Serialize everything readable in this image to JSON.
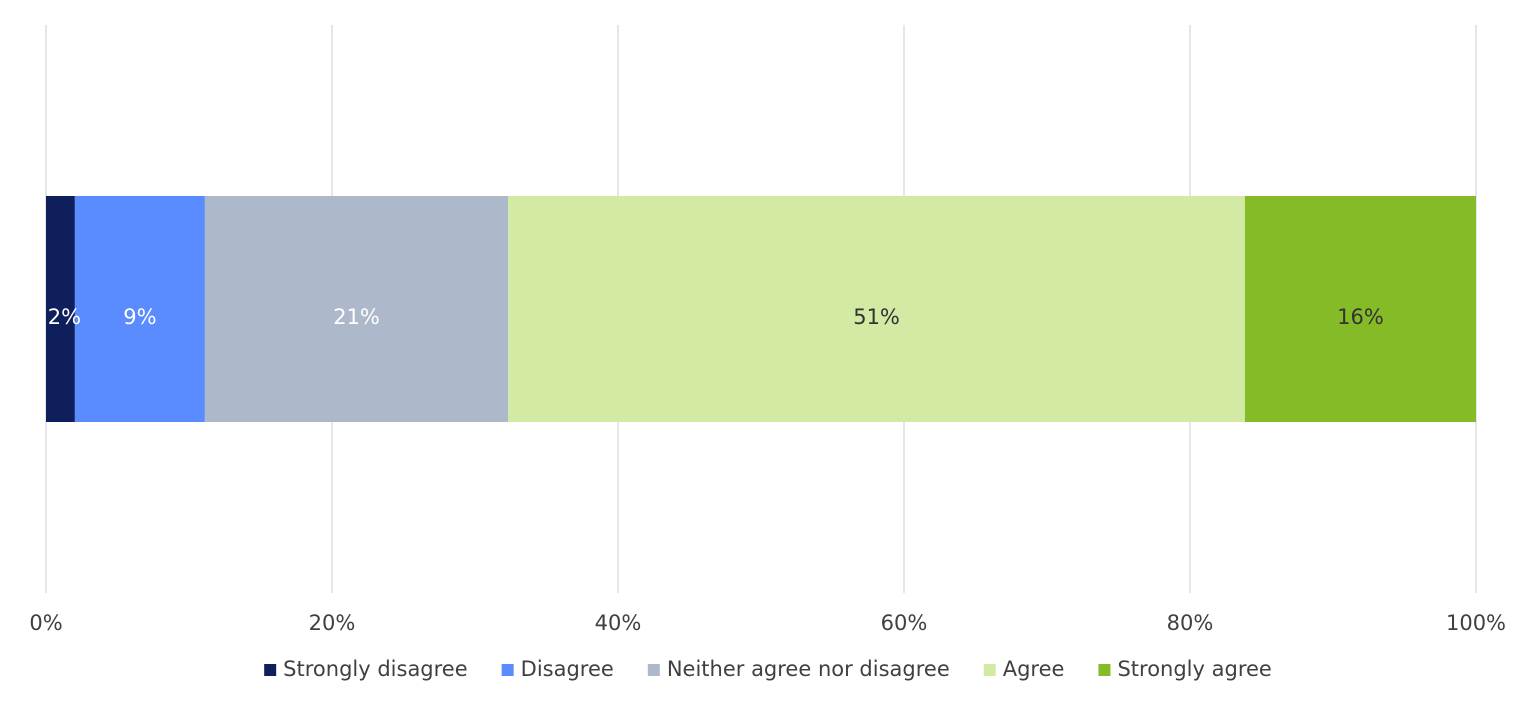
{
  "chart_data": {
    "type": "bar",
    "orientation": "horizontal",
    "stacked": true,
    "normalized": true,
    "categories": [
      ""
    ],
    "series": [
      {
        "name": "Strongly disagree",
        "values": [
          2
        ],
        "label": "2%",
        "color": "#0f1f5c",
        "label_color": "#ffffff"
      },
      {
        "name": "Disagree",
        "values": [
          9
        ],
        "label": "9%",
        "color": "#5b8cff",
        "label_color": "#ffffff"
      },
      {
        "name": "Neither agree nor disagree",
        "values": [
          21
        ],
        "label": "21%",
        "color": "#adb8ca",
        "label_color": "#ffffff"
      },
      {
        "name": "Agree",
        "values": [
          51
        ],
        "label": "51%",
        "color": "#d3eaa4",
        "label_color": "#333333"
      },
      {
        "name": "Strongly agree",
        "values": [
          16
        ],
        "label": "16%",
        "color": "#84bb26",
        "label_color": "#333333"
      }
    ],
    "xlim": [
      0,
      100
    ],
    "x_ticks": [
      {
        "value": 0,
        "label": "0%"
      },
      {
        "value": 20,
        "label": "20%"
      },
      {
        "value": 40,
        "label": "40%"
      },
      {
        "value": 60,
        "label": "60%"
      },
      {
        "value": 80,
        "label": "80%"
      },
      {
        "value": 100,
        "label": "100%"
      }
    ],
    "title": "",
    "xlabel": "",
    "ylabel": "",
    "grid": "vertical",
    "legend_position": "bottom"
  }
}
